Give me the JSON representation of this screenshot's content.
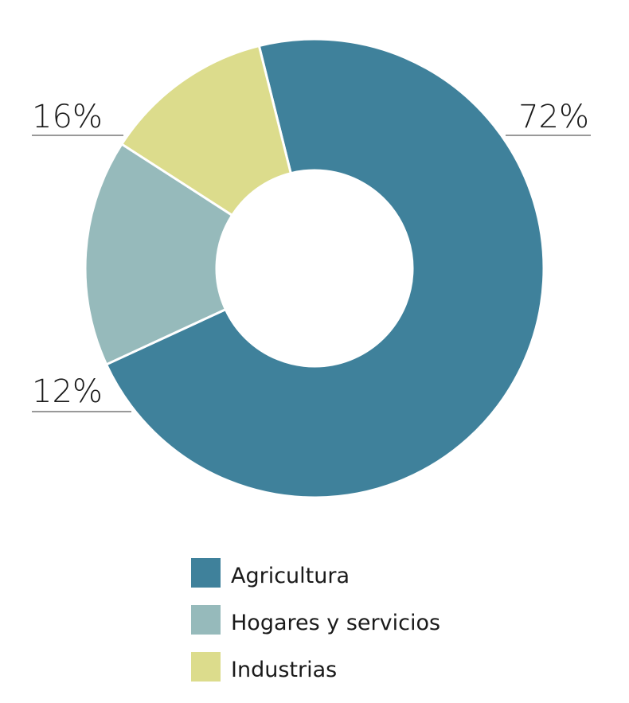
{
  "chart_data": {
    "type": "donut",
    "categories": [
      "Agricultura",
      "Hogares y servicios",
      "Industrias"
    ],
    "values": [
      72,
      16,
      12
    ],
    "value_labels": [
      "72%",
      "16%",
      "12%"
    ],
    "colors": [
      "#3f819b",
      "#96babb",
      "#dcdc8c"
    ]
  }
}
